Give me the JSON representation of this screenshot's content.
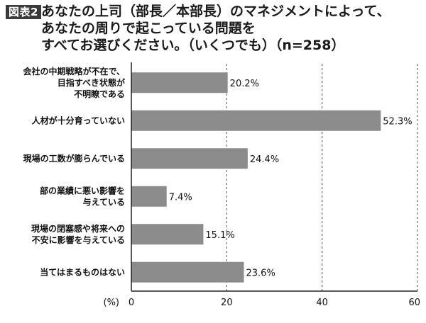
{
  "figure_badge": "図表2",
  "title_lines": [
    "あなたの上司（部長／本部長）のマネジメントによって、",
    "あなたの周りで起こっている問題を",
    "すべてお選びください。（いくつでも）（n=258）"
  ],
  "colors": {
    "bar": "#8c8c8c",
    "axis": "#222222",
    "gridline": "#555555",
    "badge_bg": "#3a3a3a"
  },
  "chart_data": {
    "type": "bar",
    "orientation": "horizontal",
    "title": "あなたの上司（部長／本部長）のマネジメントによって、あなたの周りで起こっている問題をすべてお選びください。（いくつでも）（n=258）",
    "categories": [
      [
        "会社の中期戦略が不在で、",
        "目指すべき状態が",
        "不明瞭である"
      ],
      [
        "人材が十分育っていない"
      ],
      [
        "現場の工数が膨らんでいる"
      ],
      [
        "部の業績に悪い影響を",
        "与えている"
      ],
      [
        "現場の閉塞感や将来への",
        "不安に影響を与えている"
      ],
      [
        "当てはまるものはない"
      ]
    ],
    "values": [
      20.2,
      52.3,
      24.4,
      7.4,
      15.1,
      23.6
    ],
    "value_labels": [
      "20.2%",
      "52.3%",
      "24.4%",
      "7.4%",
      "15.1%",
      "23.6%"
    ],
    "xlim": [
      0,
      60
    ],
    "xticks": [
      "0",
      "20",
      "40",
      "60"
    ],
    "xunit_label": "(%)",
    "grid": "vertical dashed at 20, 40, 60"
  }
}
